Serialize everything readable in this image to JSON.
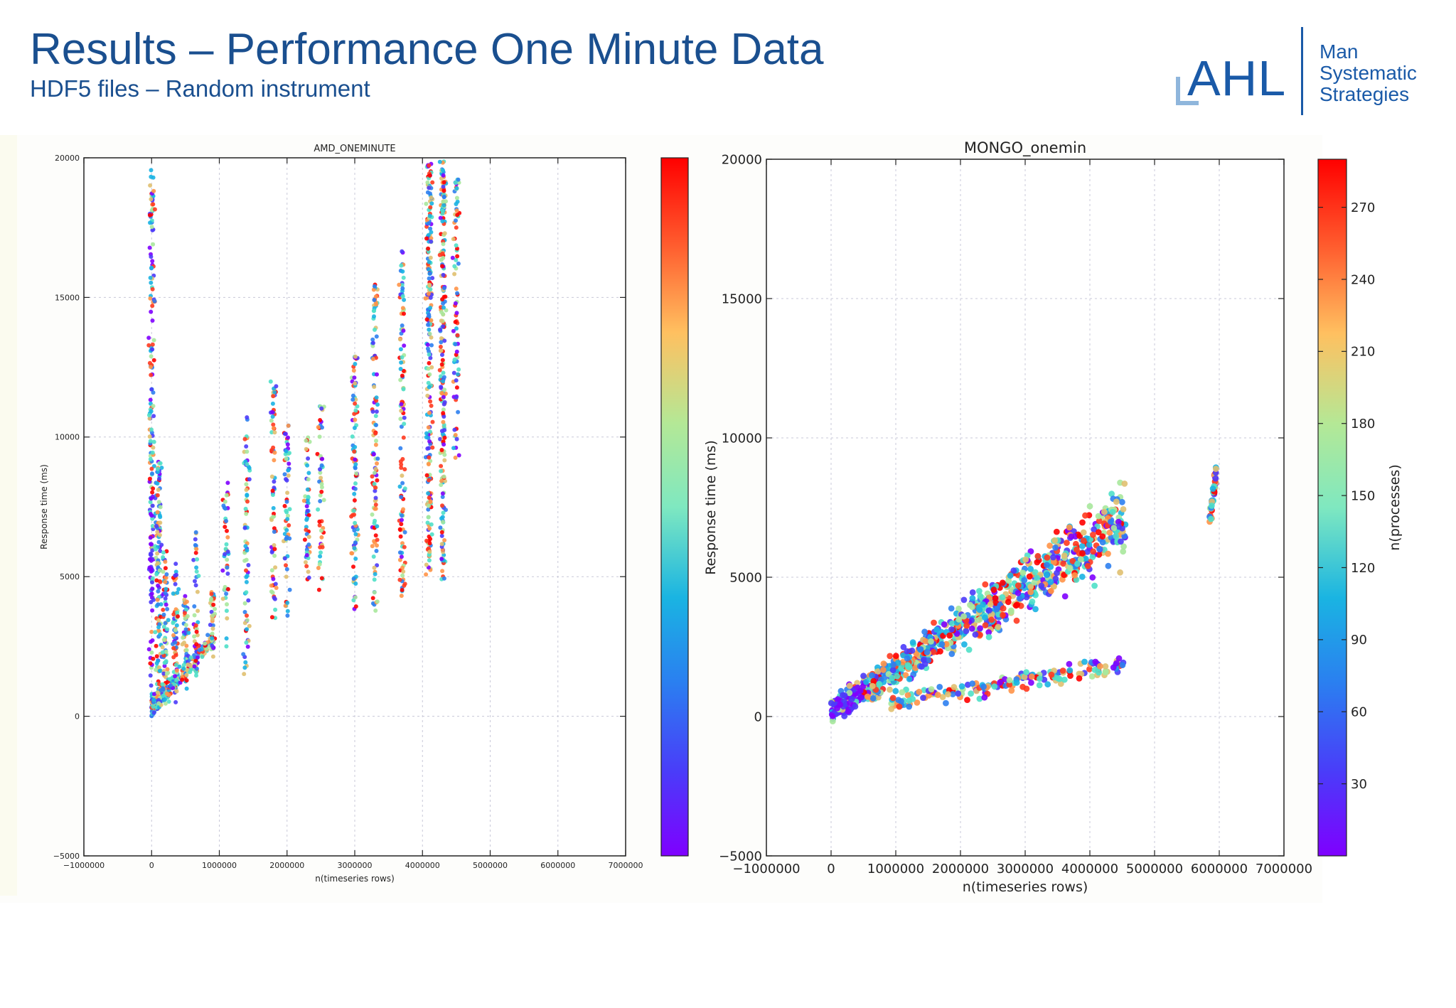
{
  "slide": {
    "title": "Results – Performance One Minute Data",
    "subtitle": "HDF5 files – Random instrument",
    "title_color": "#1a4f8f"
  },
  "logo": {
    "brand": "AHL",
    "lines": [
      "Man",
      "Systematic",
      "Strategies"
    ],
    "color": "#1a5aa8"
  },
  "chart_data": [
    {
      "type": "scatter",
      "title": "AMD_ONEMINUTE",
      "xlabel": "n(timeseries rows)",
      "ylabel": "Response time (ms)",
      "xlim": [
        -1000000,
        7000000
      ],
      "ylim": [
        -5000,
        20000
      ],
      "xticks": [
        -1000000,
        0,
        1000000,
        2000000,
        3000000,
        4000000,
        5000000,
        6000000,
        7000000
      ],
      "xtick_labels": [
        "−1000000",
        "0",
        "1000000",
        "2000000",
        "3000000",
        "4000000",
        "5000000",
        "6000000",
        "7000000"
      ],
      "yticks": [
        -5000,
        0,
        5000,
        10000,
        15000,
        20000
      ],
      "ytick_labels": [
        "−5000",
        "0",
        "5000",
        "10000",
        "15000",
        "20000"
      ],
      "grid": true,
      "colorbar": {
        "cmap": "rainbow",
        "label": "",
        "tick_labels": []
      },
      "clusters": [
        {
          "x": 0,
          "ymin": 0,
          "ymax": 19800,
          "count": 180
        },
        {
          "x": 100000,
          "ymin": 200,
          "ymax": 9300,
          "count": 120
        },
        {
          "x": 200000,
          "ymin": 300,
          "ymax": 6000,
          "count": 70
        },
        {
          "x": 350000,
          "ymin": 500,
          "ymax": 5500,
          "count": 60
        },
        {
          "x": 500000,
          "ymin": 800,
          "ymax": 4500,
          "count": 45
        },
        {
          "x": 650000,
          "ymin": 1200,
          "ymax": 6700,
          "count": 45
        },
        {
          "x": 900000,
          "ymin": 2000,
          "ymax": 4500,
          "count": 40
        },
        {
          "x": 1100000,
          "ymin": 2500,
          "ymax": 8400,
          "count": 45
        },
        {
          "x": 1400000,
          "ymin": 1500,
          "ymax": 10800,
          "count": 70
        },
        {
          "x": 1800000,
          "ymin": 3500,
          "ymax": 12000,
          "count": 70
        },
        {
          "x": 2000000,
          "ymin": 3000,
          "ymax": 10500,
          "count": 60
        },
        {
          "x": 2300000,
          "ymin": 4500,
          "ymax": 10000,
          "count": 50
        },
        {
          "x": 2500000,
          "ymin": 4200,
          "ymax": 11200,
          "count": 50
        },
        {
          "x": 3000000,
          "ymin": 3500,
          "ymax": 13000,
          "count": 90
        },
        {
          "x": 3300000,
          "ymin": 3500,
          "ymax": 15500,
          "count": 110
        },
        {
          "x": 3700000,
          "ymin": 4300,
          "ymax": 16700,
          "count": 110
        },
        {
          "x": 4100000,
          "ymin": 5000,
          "ymax": 19800,
          "count": 220
        },
        {
          "x": 4300000,
          "ymin": 4800,
          "ymax": 19900,
          "count": 220
        },
        {
          "x": 4500000,
          "ymin": 9000,
          "ymax": 19500,
          "count": 80
        }
      ]
    },
    {
      "type": "scatter",
      "title": "MONGO_onemin",
      "xlabel": "n(timeseries rows)",
      "ylabel": "Response time (ms)",
      "xlim": [
        -1000000,
        7000000
      ],
      "ylim": [
        -5000,
        20000
      ],
      "xticks": [
        -1000000,
        0,
        1000000,
        2000000,
        3000000,
        4000000,
        5000000,
        6000000,
        7000000
      ],
      "xtick_labels": [
        "−1000000",
        "0",
        "1000000",
        "2000000",
        "3000000",
        "4000000",
        "5000000",
        "6000000",
        "7000000"
      ],
      "yticks": [
        -5000,
        0,
        5000,
        10000,
        15000,
        20000
      ],
      "ytick_labels": [
        "−5000",
        "0",
        "5000",
        "10000",
        "15000",
        "20000"
      ],
      "grid": true,
      "colorbar": {
        "cmap": "rainbow",
        "label": "n(processes)",
        "range": [
          0,
          290
        ],
        "tick_values": [
          30,
          60,
          90,
          120,
          150,
          180,
          210,
          240,
          270
        ],
        "tick_labels": [
          "30",
          "60",
          "90",
          "120",
          "150",
          "180",
          "210",
          "240",
          "270"
        ]
      },
      "bands": [
        {
          "name": "main",
          "x_range": [
            0,
            4550000
          ],
          "y_at_start": 200,
          "y_at_end": 7000,
          "spread": 1400,
          "count": 900
        },
        {
          "name": "lower",
          "x_range": [
            900000,
            4550000
          ],
          "y_at_start": 500,
          "y_at_end": 1900,
          "spread": 500,
          "count": 170
        },
        {
          "name": "outlier",
          "x_range": [
            5850000,
            5950000
          ],
          "y_at_start": 7000,
          "y_at_end": 8800,
          "spread": 600,
          "count": 40
        }
      ]
    }
  ]
}
